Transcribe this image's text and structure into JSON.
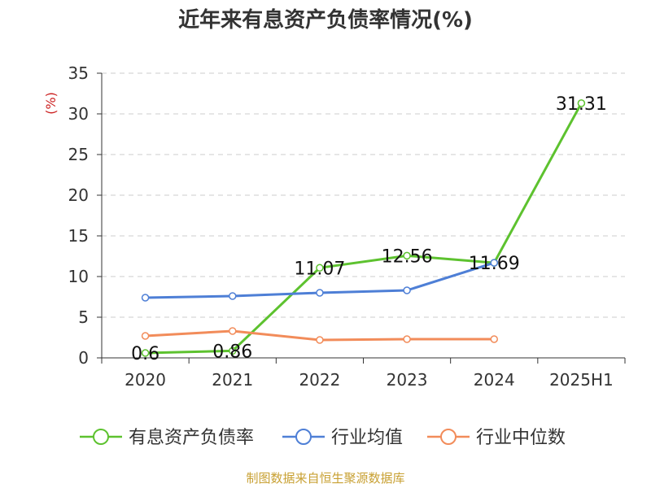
{
  "title": "近年来有息资产负债率情况(%)",
  "source": "制图数据来自恒生聚源数据库",
  "chart_data": {
    "type": "line",
    "title": "近年来有息资产负债率情况(%)",
    "ylabel": "(%)",
    "xlabel": "",
    "categories": [
      "2020",
      "2021",
      "2022",
      "2023",
      "2024",
      "2025H1"
    ],
    "ylim": [
      0,
      35
    ],
    "yticks": [
      0,
      5,
      10,
      15,
      20,
      25,
      30,
      35
    ],
    "grid": true,
    "legend_position": "bottom",
    "series": [
      {
        "name": "有息资产负债率",
        "color": "#5dc22f",
        "values": [
          0.6,
          0.86,
          11.07,
          12.56,
          11.69,
          31.31
        ],
        "labels": [
          "0.6",
          "0.86",
          "11.07",
          "12.56",
          "11.69",
          "31.31"
        ]
      },
      {
        "name": "行业均值",
        "color": "#4e7fd6",
        "values": [
          7.4,
          7.6,
          8.0,
          8.3,
          11.69,
          null
        ]
      },
      {
        "name": "行业中位数",
        "color": "#f28c5a",
        "values": [
          2.7,
          3.3,
          2.2,
          2.3,
          2.3,
          null
        ]
      }
    ]
  }
}
